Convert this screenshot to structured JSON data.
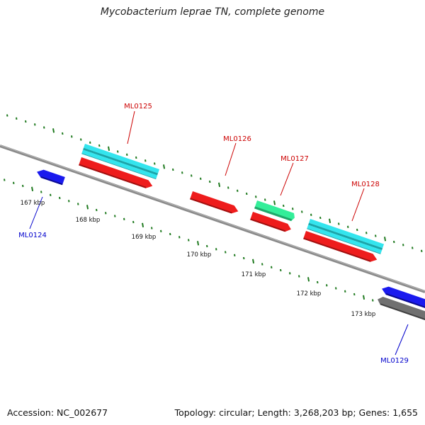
{
  "title": "Mycobacterium leprae TN, complete genome",
  "accession": "Accession: NC_002677",
  "summary": "Topology: circular; Length: 3,268,203 bp; Genes: 1,655",
  "colors": {
    "backbone": "#8c8c8c",
    "tick": "#1f7a1f",
    "forward_label": "#cc0000",
    "reverse_label": "#0000cc",
    "gene": "#ee1c1c",
    "cds_band": "#33e5ee",
    "rrna": "#33ee99",
    "reverse_gene": "#1a1aee",
    "pseudogene": "#707070"
  },
  "kbp_labels": [
    "167 kbp",
    "168 kbp",
    "169 kbp",
    "170 kbp",
    "171 kbp",
    "172 kbp",
    "173 kbp"
  ],
  "genes": {
    "ML0124": {
      "label": "ML0124",
      "strand": "reverse"
    },
    "ML0125": {
      "label": "ML0125",
      "strand": "forward"
    },
    "ML0126": {
      "label": "ML0126",
      "strand": "forward"
    },
    "ML0127": {
      "label": "ML0127",
      "strand": "forward"
    },
    "ML0128": {
      "label": "ML0128",
      "strand": "forward"
    },
    "ML0129": {
      "label": "ML0129",
      "strand": "reverse"
    }
  }
}
